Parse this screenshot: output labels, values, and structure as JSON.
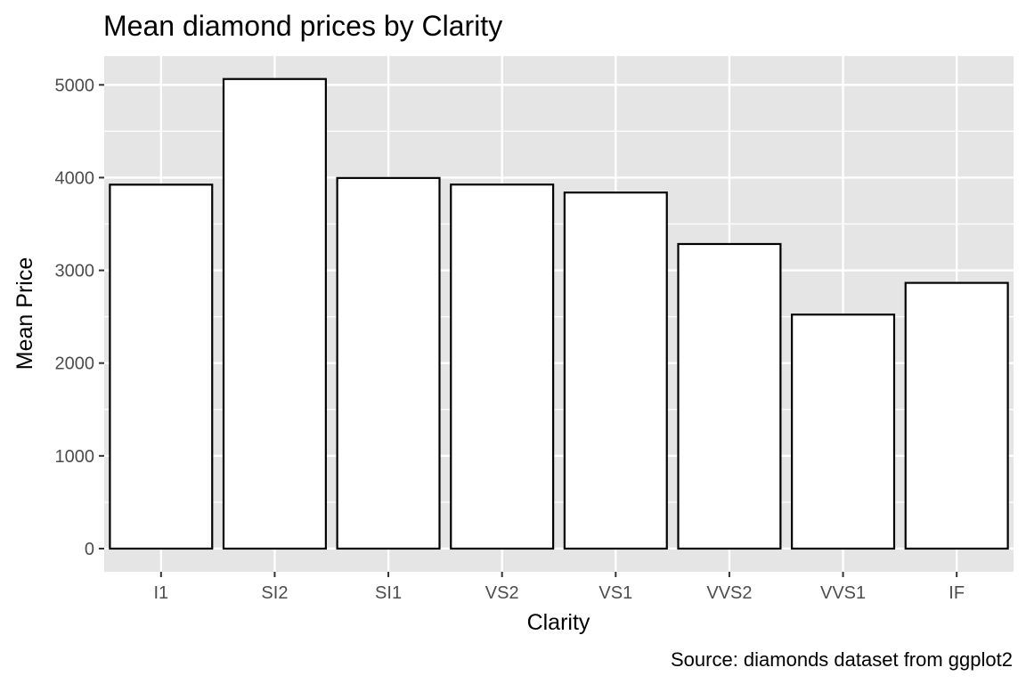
{
  "chart_data": {
    "type": "bar",
    "title": "Mean diamond prices by Clarity",
    "xlabel": "Clarity",
    "ylabel": "Mean Price",
    "caption": "Source: diamonds dataset from ggplot2",
    "categories": [
      "I1",
      "SI2",
      "SI1",
      "VS2",
      "VS1",
      "VVS2",
      "VVS1",
      "IF"
    ],
    "values": [
      3924,
      5063,
      3996,
      3925,
      3839,
      3284,
      2523,
      2865
    ],
    "ylim": [
      -250,
      5310
    ],
    "yticks": [
      0,
      1000,
      2000,
      3000,
      4000,
      5000
    ],
    "ytick_labels": [
      "0",
      "1000",
      "2000",
      "3000",
      "4000",
      "5000"
    ],
    "grid": true,
    "colors": {
      "panel_background": "#e5e5e5",
      "grid_line": "#ffffff",
      "bar_fill": "#ffffff",
      "bar_outline": "#000000",
      "tick_text": "#4d4d4d",
      "tick_mark": "#333333"
    }
  }
}
